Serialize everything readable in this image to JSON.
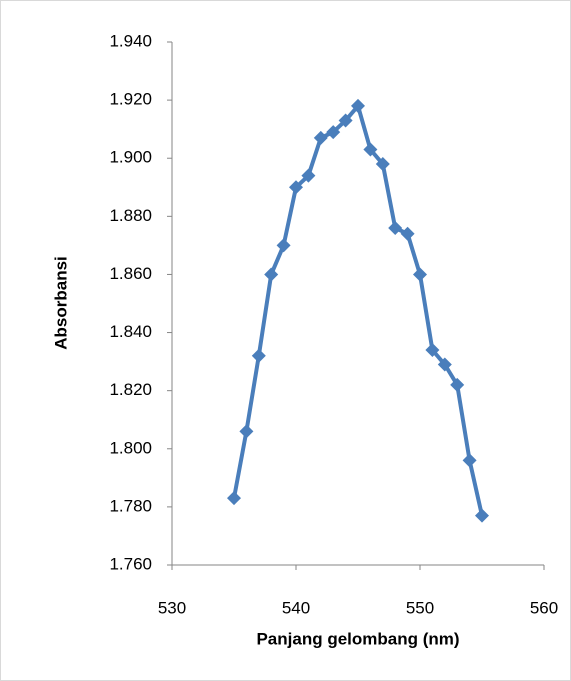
{
  "chart_data": {
    "type": "line",
    "x_label": "Panjang gelombang (nm)",
    "y_label": "Absorbansi",
    "x": [
      535,
      536,
      537,
      538,
      539,
      540,
      541,
      542,
      543,
      544,
      545,
      546,
      547,
      548,
      549,
      550,
      551,
      552,
      553,
      554,
      555
    ],
    "series": [
      {
        "name": "Absorbansi",
        "color": "#4a7ebb",
        "values": [
          1.783,
          1.806,
          1.832,
          1.86,
          1.87,
          1.89,
          1.894,
          1.907,
          1.909,
          1.913,
          1.918,
          1.903,
          1.898,
          1.876,
          1.874,
          1.86,
          1.834,
          1.829,
          1.822,
          1.796,
          1.777
        ]
      }
    ],
    "xlim": [
      530,
      560
    ],
    "xticks": [
      530,
      540,
      550,
      560
    ],
    "ylim": [
      1.76,
      1.94
    ],
    "yticks": [
      {
        "value": 1.76,
        "label": "1.760"
      },
      {
        "value": 1.78,
        "label": "1.780"
      },
      {
        "value": 1.8,
        "label": "1.800"
      },
      {
        "value": 1.82,
        "label": "1.820"
      },
      {
        "value": 1.84,
        "label": "1.840"
      },
      {
        "value": 1.86,
        "label": "1.860"
      },
      {
        "value": 1.88,
        "label": "1.880"
      },
      {
        "value": 1.9,
        "label": "1.900"
      },
      {
        "value": 1.92,
        "label": "1.920"
      },
      {
        "value": 1.94,
        "label": "1.940"
      }
    ],
    "grid": false
  }
}
